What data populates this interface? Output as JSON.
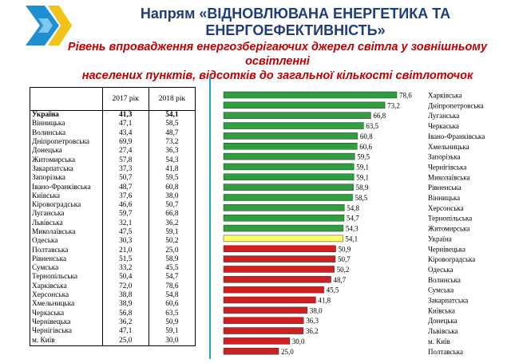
{
  "header": {
    "title_line1": "Напрям «ВІДНОВЛЮВАНА ЕНЕРГЕТИКА ТА",
    "title_line2": "ЕНЕРГОЕФЕКТИВНІСТЬ»",
    "subtitle_line1": "Рівень впровадження енергозберігаючих джерел світла у зовнішньому освітленні",
    "subtitle_line2": "населених пунктів, відсотків до загальної кількості світлоточок"
  },
  "colors": {
    "logo_blue": "#1f8fd1",
    "logo_yellow": "#f2c21b",
    "bar_green": "#2e9e3e",
    "bar_yellow": "#ffff66",
    "bar_red": "#d11f1f",
    "divider": "#1fa3c8"
  },
  "table": {
    "col_2017": "2017 рік",
    "col_2018": "2018 рік",
    "rows": [
      {
        "region": "Україна",
        "v2017": "41,3",
        "v2018": "54,1"
      },
      {
        "region": "Вінницька",
        "v2017": "47,1",
        "v2018": "58,5"
      },
      {
        "region": "Волинська",
        "v2017": "43,4",
        "v2018": "48,7"
      },
      {
        "region": "Дніпропетровська",
        "v2017": "69,9",
        "v2018": "73,2"
      },
      {
        "region": "Донецька",
        "v2017": "27,4",
        "v2018": "36,3"
      },
      {
        "region": "Житомирська",
        "v2017": "57,8",
        "v2018": "54,3"
      },
      {
        "region": "Закарпатська",
        "v2017": "37,3",
        "v2018": "41,8"
      },
      {
        "region": "Запорізька",
        "v2017": "50,7",
        "v2018": "59,5"
      },
      {
        "region": "Івано-Франківська",
        "v2017": "48,7",
        "v2018": "60,8"
      },
      {
        "region": "Київська",
        "v2017": "37,6",
        "v2018": "38,0"
      },
      {
        "region": "Кіровоградська",
        "v2017": "46,6",
        "v2018": "50,7"
      },
      {
        "region": "Луганська",
        "v2017": "59,7",
        "v2018": "66,8"
      },
      {
        "region": "Львівська",
        "v2017": "32,1",
        "v2018": "36,2"
      },
      {
        "region": "Миколаївська",
        "v2017": "47,5",
        "v2018": "59,1"
      },
      {
        "region": "Одеська",
        "v2017": "30,3",
        "v2018": "50,2"
      },
      {
        "region": "Полтавська",
        "v2017": "21,0",
        "v2018": "25,0"
      },
      {
        "region": "Рівненська",
        "v2017": "51,5",
        "v2018": "58,9"
      },
      {
        "region": "Сумська",
        "v2017": "33,2",
        "v2018": "45,5"
      },
      {
        "region": "Тернопільська",
        "v2017": "50,4",
        "v2018": "54,7"
      },
      {
        "region": "Харківська",
        "v2017": "72,0",
        "v2018": "78,6"
      },
      {
        "region": "Херсонська",
        "v2017": "38,8",
        "v2018": "54,8"
      },
      {
        "region": "Хмельницька",
        "v2017": "38,9",
        "v2018": "60,6"
      },
      {
        "region": "Черкаська",
        "v2017": "56,8",
        "v2018": "63,5"
      },
      {
        "region": "Чернівецька",
        "v2017": "36,2",
        "v2018": "50,9"
      },
      {
        "region": "Чернігівська",
        "v2017": "47,1",
        "v2018": "59,1"
      },
      {
        "region": "м. Київ",
        "v2017": "25,0",
        "v2018": "30,0"
      }
    ]
  },
  "chart_data": {
    "type": "bar",
    "orientation": "horizontal",
    "categories": [
      "Харківська",
      "Дніпропетровська",
      "Луганська",
      "Черкаська",
      "Івано-Франківська",
      "Хмельницька",
      "Запорізька",
      "Чернігівська",
      "Миколаївська",
      "Рівненська",
      "Вінницька",
      "Херсонська",
      "Тернопільська",
      "Житомирська",
      "Україна",
      "Чернівецька",
      "Кіровоградська",
      "Одеська",
      "Волинська",
      "Сумська",
      "Закарпатська",
      "Київська",
      "Донецька",
      "Львівська",
      "м. Київ",
      "Полтавська"
    ],
    "values": [
      78.6,
      73.2,
      66.8,
      63.5,
      60.8,
      60.6,
      59.5,
      59.1,
      59.1,
      58.9,
      58.5,
      54.8,
      54.7,
      54.3,
      54.1,
      50.9,
      50.7,
      50.2,
      48.7,
      45.5,
      41.8,
      38.0,
      36.3,
      36.2,
      30.0,
      25.0
    ],
    "value_labels": [
      "78,6",
      "73,2",
      "66,8",
      "63,5",
      "60,8",
      "60,6",
      "59,5",
      "59,1",
      "59,1",
      "58,9",
      "58,5",
      "54,8",
      "54,7",
      "54,3",
      "54,1",
      "50,9",
      "50,7",
      "50,2",
      "48,7",
      "45,5",
      "41,8",
      "38,0",
      "36,3",
      "36,2",
      "30,0",
      "25,0"
    ],
    "color_groups": [
      "green",
      "green",
      "green",
      "green",
      "green",
      "green",
      "green",
      "green",
      "green",
      "green",
      "green",
      "green",
      "green",
      "green",
      "yellow",
      "red",
      "red",
      "red",
      "red",
      "red",
      "red",
      "red",
      "red",
      "red",
      "red",
      "red"
    ],
    "title": "",
    "xlabel": "",
    "ylabel": "",
    "xlim": [
      0,
      80
    ],
    "grid": false,
    "legend": "none"
  }
}
